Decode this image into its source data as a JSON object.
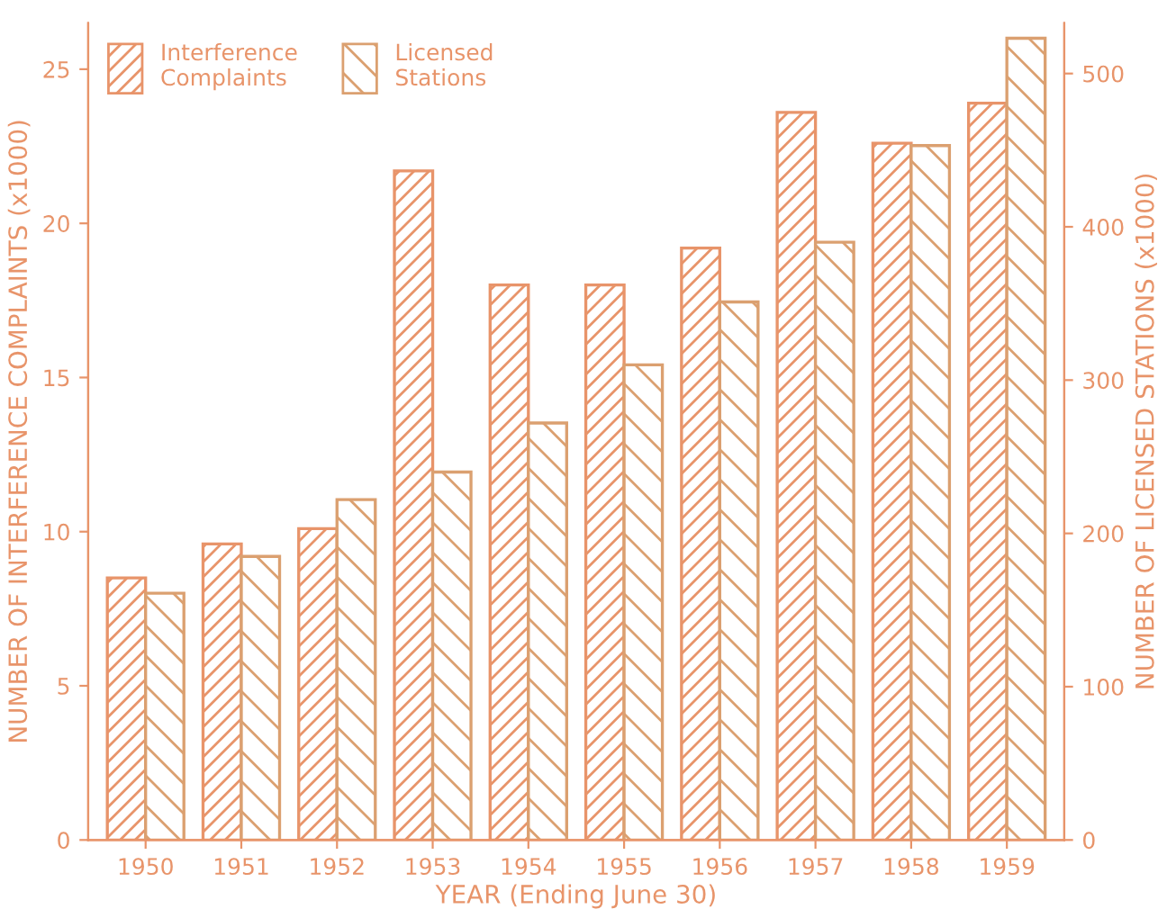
{
  "chart_data": {
    "type": "bar",
    "categories": [
      "1950",
      "1951",
      "1952",
      "1953",
      "1954",
      "1955",
      "1956",
      "1957",
      "1958",
      "1959"
    ],
    "xlabel": "YEAR (Ending June 30)",
    "ylabel": "NUMBER OF INTERFERENCE COMPLAINTS (x1000)",
    "y2label": "NUMBER OF LICENSED STATIONS (x1000)",
    "series": [
      {
        "name": "Interference\nComplaints",
        "color": "#e8946a",
        "values": [
          8.5,
          9.6,
          10.1,
          21.7,
          18.0,
          18.0,
          19.2,
          23.6,
          22.6,
          23.9
        ]
      },
      {
        "name": "Licensed\nStations",
        "color": "#dba070",
        "axis": "y2",
        "values": [
          161,
          185,
          222,
          240,
          272,
          310,
          351,
          390,
          453,
          523
        ]
      }
    ],
    "ylim": [
      0,
      26.5
    ],
    "yticks": [
      0,
      5,
      10,
      15,
      20,
      25
    ],
    "y2lim": [
      0,
      533
    ],
    "y2ticks": [
      0,
      100,
      200,
      300,
      400,
      500
    ],
    "grid": false,
    "legend": "top left"
  }
}
